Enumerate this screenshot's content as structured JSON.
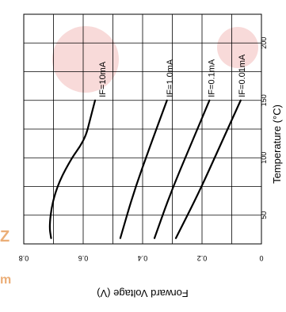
{
  "chart_data": {
    "type": "line",
    "xlabel": "Temperature (°C)",
    "ylabel": "Forward Voltage (V)",
    "xlim": [
      25,
      225
    ],
    "ylim": [
      0,
      0.8
    ],
    "x_ticks": [
      "50",
      "100",
      "150",
      "200"
    ],
    "y_ticks": [
      "0",
      "0.2",
      "0.4",
      "0.6",
      "0.8"
    ],
    "grid": true,
    "orientation": "rotated 90° clockwise",
    "series": [
      {
        "name": "IF=10mA",
        "x": [
          30,
          40,
          60,
          80,
          100,
          110,
          120,
          130,
          150
        ],
        "y": [
          0.708,
          0.714,
          0.705,
          0.68,
          0.638,
          0.61,
          0.59,
          0.58,
          0.56
        ]
      },
      {
        "name": "IF=1.0mA",
        "x": [
          30,
          70,
          110,
          150
        ],
        "y": [
          0.475,
          0.43,
          0.375,
          0.318
        ]
      },
      {
        "name": "IF=0.1mA",
        "x": [
          30,
          70,
          110,
          150
        ],
        "y": [
          0.36,
          0.305,
          0.24,
          0.175
        ]
      },
      {
        "name": "IF=0.01mA",
        "x": [
          30,
          70,
          110,
          150
        ],
        "y": [
          0.288,
          0.21,
          0.14,
          0.07
        ]
      }
    ]
  }
}
